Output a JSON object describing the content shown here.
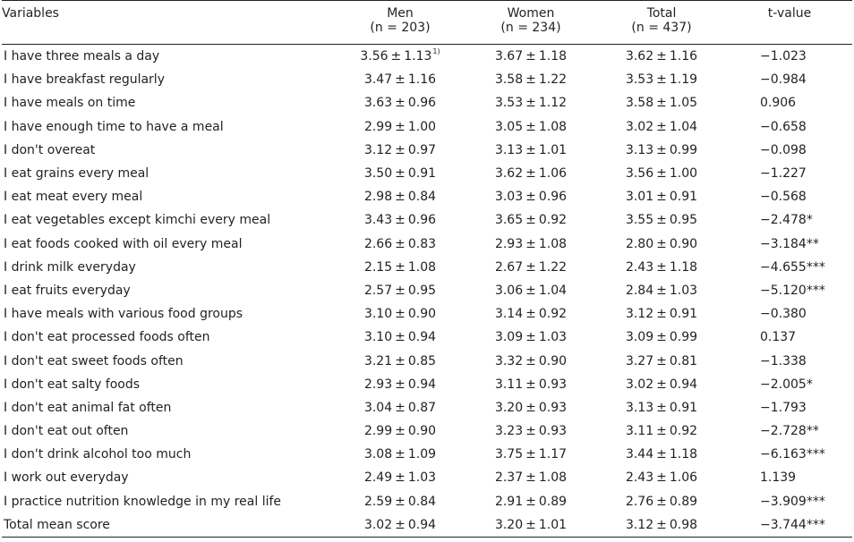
{
  "header": {
    "variables": "Variables",
    "men": "Men",
    "men_n": "(n = 203)",
    "women": "Women",
    "women_n": "(n = 234)",
    "total": "Total",
    "total_n": "(n = 437)",
    "tvalue": "t-value"
  },
  "footnote_marker": "1)",
  "rows": [
    {
      "variable": "I have three meals a day",
      "men": [
        "3.56",
        "1.13"
      ],
      "women": [
        "3.67",
        "1.18"
      ],
      "total": [
        "3.62",
        "1.16"
      ],
      "t": "−1.023",
      "sig": ""
    },
    {
      "variable": "I have breakfast regularly",
      "men": [
        "3.47",
        "1.16"
      ],
      "women": [
        "3.58",
        "1.22"
      ],
      "total": [
        "3.53",
        "1.19"
      ],
      "t": "−0.984",
      "sig": ""
    },
    {
      "variable": "I have meals on time",
      "men": [
        "3.63",
        "0.96"
      ],
      "women": [
        "3.53",
        "1.12"
      ],
      "total": [
        "3.58",
        "1.05"
      ],
      "t": "0.906",
      "sig": ""
    },
    {
      "variable": "I have enough time to have a meal",
      "men": [
        "2.99",
        "1.00"
      ],
      "women": [
        "3.05",
        "1.08"
      ],
      "total": [
        "3.02",
        "1.04"
      ],
      "t": "−0.658",
      "sig": ""
    },
    {
      "variable": "I don't overeat",
      "men": [
        "3.12",
        "0.97"
      ],
      "women": [
        "3.13",
        "1.01"
      ],
      "total": [
        "3.13",
        "0.99"
      ],
      "t": "−0.098",
      "sig": ""
    },
    {
      "variable": "I eat grains every meal",
      "men": [
        "3.50",
        "0.91"
      ],
      "women": [
        "3.62",
        "1.06"
      ],
      "total": [
        "3.56",
        "1.00"
      ],
      "t": "−1.227",
      "sig": ""
    },
    {
      "variable": "I eat meat every meal",
      "men": [
        "2.98",
        "0.84"
      ],
      "women": [
        "3.03",
        "0.96"
      ],
      "total": [
        "3.01",
        "0.91"
      ],
      "t": "−0.568",
      "sig": ""
    },
    {
      "variable": "I eat vegetables except kimchi every meal",
      "men": [
        "3.43",
        "0.96"
      ],
      "women": [
        "3.65",
        "0.92"
      ],
      "total": [
        "3.55",
        "0.95"
      ],
      "t": "−2.478",
      "sig": "*"
    },
    {
      "variable": "I eat foods cooked with oil every meal",
      "men": [
        "2.66",
        "0.83"
      ],
      "women": [
        "2.93",
        "1.08"
      ],
      "total": [
        "2.80",
        "0.90"
      ],
      "t": "−3.184",
      "sig": "**"
    },
    {
      "variable": "I drink milk everyday",
      "men": [
        "2.15",
        "1.08"
      ],
      "women": [
        "2.67",
        "1.22"
      ],
      "total": [
        "2.43",
        "1.18"
      ],
      "t": "−4.655",
      "sig": "***"
    },
    {
      "variable": "I eat fruits everyday",
      "men": [
        "2.57",
        "0.95"
      ],
      "women": [
        "3.06",
        "1.04"
      ],
      "total": [
        "2.84",
        "1.03"
      ],
      "t": "−5.120",
      "sig": "***"
    },
    {
      "variable": "I have meals with various food groups",
      "men": [
        "3.10",
        "0.90"
      ],
      "women": [
        "3.14",
        "0.92"
      ],
      "total": [
        "3.12",
        "0.91"
      ],
      "t": "−0.380",
      "sig": ""
    },
    {
      "variable": "I don't eat processed foods often",
      "men": [
        "3.10",
        "0.94"
      ],
      "women": [
        "3.09",
        "1.03"
      ],
      "total": [
        "3.09",
        "0.99"
      ],
      "t": "0.137",
      "sig": ""
    },
    {
      "variable": "I don't eat sweet foods often",
      "men": [
        "3.21",
        "0.85"
      ],
      "women": [
        "3.32",
        "0.90"
      ],
      "total": [
        "3.27",
        "0.81"
      ],
      "t": "−1.338",
      "sig": ""
    },
    {
      "variable": "I don't eat salty foods",
      "men": [
        "2.93",
        "0.94"
      ],
      "women": [
        "3.11",
        "0.93"
      ],
      "total": [
        "3.02",
        "0.94"
      ],
      "t": "−2.005",
      "sig": "*"
    },
    {
      "variable": "I don't eat animal fat often",
      "men": [
        "3.04",
        "0.87"
      ],
      "women": [
        "3.20",
        "0.93"
      ],
      "total": [
        "3.13",
        "0.91"
      ],
      "t": "−1.793",
      "sig": ""
    },
    {
      "variable": "I don't eat out often",
      "men": [
        "2.99",
        "0.90"
      ],
      "women": [
        "3.23",
        "0.93"
      ],
      "total": [
        "3.11",
        "0.92"
      ],
      "t": "−2.728",
      "sig": "**"
    },
    {
      "variable": "I don't drink alcohol too much",
      "men": [
        "3.08",
        "1.09"
      ],
      "women": [
        "3.75",
        "1.17"
      ],
      "total": [
        "3.44",
        "1.18"
      ],
      "t": "−6.163",
      "sig": "***"
    },
    {
      "variable": "I work out everyday",
      "men": [
        "2.49",
        "1.03"
      ],
      "women": [
        "2.37",
        "1.08"
      ],
      "total": [
        "2.43",
        "1.06"
      ],
      "t": "1.139",
      "sig": ""
    },
    {
      "variable": "I practice nutrition knowledge in my real life",
      "men": [
        "2.59",
        "0.84"
      ],
      "women": [
        "2.91",
        "0.89"
      ],
      "total": [
        "2.76",
        "0.89"
      ],
      "t": "−3.909",
      "sig": "***"
    },
    {
      "variable": "Total mean score",
      "men": [
        "3.02",
        "0.94"
      ],
      "women": [
        "3.20",
        "1.01"
      ],
      "total": [
        "3.12",
        "0.98"
      ],
      "t": "−3.744",
      "sig": "***"
    }
  ]
}
